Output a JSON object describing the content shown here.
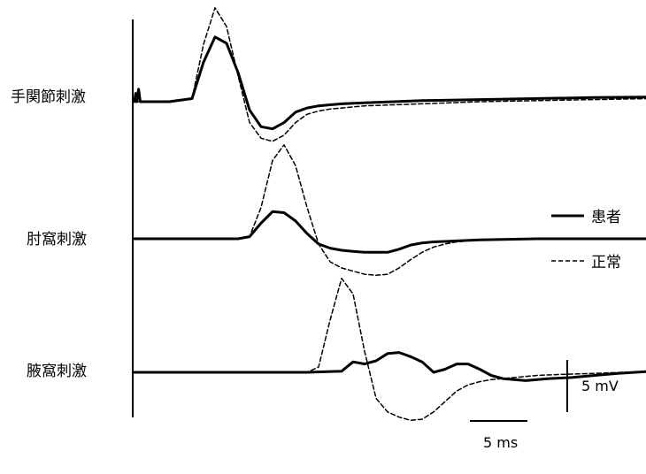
{
  "chart_data": {
    "type": "line",
    "row_labels": [
      "手関節刺激",
      "肘窩刺激",
      "腋窩刺激"
    ],
    "legend": {
      "patient": "患者",
      "normal": "正常",
      "placement": "right"
    },
    "scale_bars": {
      "time": "5 ms",
      "amplitude": "5 mV"
    },
    "x_unit": "ms",
    "y_unit": "mV",
    "grid": false,
    "traces": [
      {
        "row": "手関節刺激",
        "patient": {
          "x": [
            0,
            0.1,
            0.2,
            0.35,
            0.5,
            0.6,
            0.7,
            3,
            5,
            6,
            7,
            8,
            9,
            10,
            11,
            12,
            13,
            14,
            15,
            16,
            17,
            18,
            20,
            25,
            30,
            40,
            50
          ],
          "y": [
            0,
            0.8,
            0,
            1.2,
            0,
            0,
            0,
            0,
            0.3,
            3.8,
            6.2,
            5.6,
            2.8,
            -0.8,
            -2.4,
            -2.6,
            -2.0,
            -1.0,
            -0.6,
            -0.4,
            -0.3,
            -0.2,
            -0.1,
            0.1,
            0.2,
            0.4,
            0.5
          ]
        },
        "normal": {
          "x": [
            0,
            3,
            5,
            6,
            7,
            8,
            9,
            10,
            11,
            12,
            13,
            14,
            15,
            16,
            17,
            18,
            19,
            20,
            25,
            30,
            40,
            50
          ],
          "y": [
            0,
            0,
            0.3,
            5.5,
            9.0,
            7.2,
            2.5,
            -2.0,
            -3.5,
            -3.8,
            -3.2,
            -2.0,
            -1.2,
            -0.9,
            -0.7,
            -0.6,
            -0.5,
            -0.4,
            -0.2,
            0.0,
            0.2,
            0.4
          ]
        }
      },
      {
        "row": "肘窩刺激",
        "patient": {
          "x": [
            0,
            5,
            9,
            10,
            11,
            12,
            13,
            14,
            15,
            16,
            17,
            18,
            19,
            20,
            21,
            22,
            23,
            24,
            25,
            26,
            28,
            30,
            35,
            40,
            50
          ],
          "y": [
            0,
            0,
            0,
            0.2,
            1.5,
            2.6,
            2.5,
            1.7,
            0.5,
            -0.5,
            -0.9,
            -1.1,
            -1.2,
            -1.3,
            -1.3,
            -1.3,
            -1.0,
            -0.6,
            -0.4,
            -0.3,
            -0.2,
            -0.1,
            0.0,
            0.0,
            0.0
          ]
        },
        "normal": {
          "x": [
            0,
            9,
            10,
            11,
            12,
            13,
            14,
            15,
            16,
            17,
            18,
            19,
            20,
            21,
            22,
            23,
            24,
            25,
            26,
            27,
            28,
            30,
            35,
            40,
            50
          ],
          "y": [
            0,
            0,
            0.2,
            3.0,
            7.5,
            9.0,
            7.0,
            3.0,
            -0.5,
            -2.2,
            -2.8,
            -3.1,
            -3.4,
            -3.5,
            -3.4,
            -2.8,
            -2.0,
            -1.3,
            -0.8,
            -0.5,
            -0.3,
            -0.1,
            0.0,
            0.0,
            0.0
          ]
        }
      },
      {
        "row": "腋窩刺激",
        "patient": {
          "x": [
            0,
            10,
            15,
            18,
            19,
            20,
            21,
            22,
            23,
            24,
            25,
            26,
            27,
            28,
            29,
            30,
            31,
            32,
            33,
            34,
            35,
            36,
            38,
            40,
            42,
            45,
            50
          ],
          "y": [
            0,
            0,
            0,
            0.1,
            1.0,
            0.8,
            1.1,
            1.8,
            1.9,
            1.5,
            1.0,
            0.0,
            0.3,
            0.8,
            0.8,
            0.3,
            -0.3,
            -0.6,
            -0.7,
            -0.8,
            -0.7,
            -0.6,
            -0.5,
            -0.3,
            -0.1,
            0.1,
            0.4
          ]
        },
        "normal": {
          "x": [
            0,
            15,
            16,
            17,
            18,
            19,
            20,
            21,
            22,
            23,
            24,
            25,
            26,
            27,
            28,
            29,
            30,
            31,
            32,
            33,
            34,
            35,
            37,
            40,
            45,
            50
          ],
          "y": [
            0,
            0,
            0.5,
            5.0,
            9.0,
            7.5,
            2.0,
            -2.5,
            -3.8,
            -4.3,
            -4.6,
            -4.5,
            -3.8,
            -2.8,
            -1.8,
            -1.2,
            -0.9,
            -0.7,
            -0.6,
            -0.5,
            -0.4,
            -0.3,
            -0.2,
            -0.1,
            0.1,
            0.3
          ]
        }
      }
    ]
  }
}
